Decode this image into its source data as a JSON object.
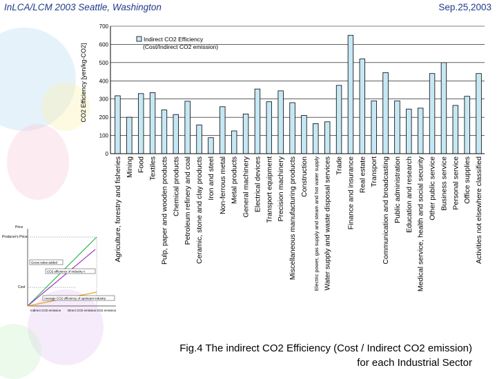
{
  "header": {
    "event": "InLCA/LCM 2003  Seattle, Washington",
    "date": "Sep.25,2003"
  },
  "caption": {
    "line1": "Fig.4 The indirect CO2 Efficiency (Cost / Indirect CO2 emission)",
    "line2": "for each Industrial Sector"
  },
  "colors": {
    "bar": "#c6e8f5",
    "bar_stroke": "#000000",
    "header_text": "#1f3a8a"
  },
  "chart_data": {
    "type": "bar",
    "title": "",
    "ylabel": "CO2 Efficiency [yen/kg-CO2]",
    "xlabel": "",
    "ylim": [
      0,
      700
    ],
    "yticks": [
      0,
      100,
      200,
      300,
      400,
      500,
      600,
      700
    ],
    "legend": {
      "label_line1": "Indirect CO2 Efficiency",
      "label_line2": "(Cost/Indirect CO2 emission)",
      "position": "top-left"
    },
    "categories": [
      "Agriculture, forestry and fisheries",
      "Mining",
      "Food",
      "Textiles",
      "Pulp, paper and wooden products",
      "Chemical products",
      "Petroleum refinery and coal",
      "Ceramic, stone and clay products",
      "Iron and steel",
      "Non-ferrous metal",
      "Metal products",
      "General machinery",
      "Electrical devices",
      "Transport equipment",
      "Precision machinery",
      "Miscellaneous manufacturing products",
      "Construction",
      "Electric power, gas supply and steam and hot water supply",
      "Water supply and waste disposal services",
      "Trade",
      "Finance and insurance",
      "Real estate",
      "Transport",
      "Communication and broadcasting",
      "Public administration",
      "Education and research",
      "Medical service, health and social security",
      "Other public service",
      "Business service",
      "Personal service",
      "Office supplies",
      "Activities not elsewhere classified"
    ],
    "values": [
      318,
      200,
      330,
      335,
      240,
      215,
      288,
      158,
      88,
      258,
      125,
      218,
      355,
      285,
      345,
      280,
      210,
      165,
      175,
      375,
      650,
      520,
      290,
      445,
      290,
      245,
      250,
      440,
      500,
      265,
      315,
      440
    ]
  },
  "inset": {
    "y_label": "Price",
    "producer_price": "Producer's Price",
    "gross_value_added": "Gross value-added",
    "efficiency_a": "CO2 efficiency of Industry A",
    "cost_label": "Cost",
    "average_efficiency": "Average CO2 efficiency of upstream industry",
    "indirect_emission": "Indirect CO2 emission",
    "direct_emission": "Direct CO2 emission",
    "x_label": "CO2 emission"
  }
}
